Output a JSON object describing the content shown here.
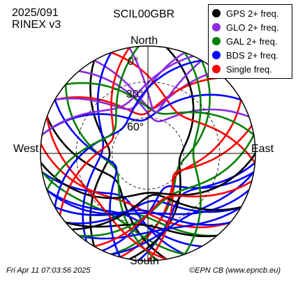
{
  "header": {
    "date_code": "2025/091",
    "format": "RINEX v3",
    "station": "SCIL00GBR"
  },
  "footer": {
    "timestamp": "Fri Apr 11 07:03:56 2025",
    "credit": "©EPN CB (www.epncb.eu)"
  },
  "chart_data": {
    "type": "skyplot",
    "directions": {
      "north": "North",
      "south": "South",
      "east": "East",
      "west": "West"
    },
    "elevation_rings": [
      {
        "value": 0,
        "label": "0°"
      },
      {
        "value": 30,
        "label": "30°"
      },
      {
        "value": 60,
        "label": "60°"
      }
    ],
    "legend": [
      {
        "name": "GPS 2+ freq.",
        "color": "#000000"
      },
      {
        "name": "GLO 2+ freq.",
        "color": "#8a2be2"
      },
      {
        "name": "GAL 2+ freq.",
        "color": "#008000"
      },
      {
        "name": "BDS 2+ freq.",
        "color": "#0000ff"
      },
      {
        "name": "Single freq.",
        "color": "#ff0000"
      }
    ],
    "tracks_note_free": true,
    "tracks": [
      {
        "system": "GAL 2+ freq.",
        "rise_az": 200,
        "set_az": 30,
        "max_el": 62
      },
      {
        "system": "GPS 2+ freq.",
        "rise_az": 210,
        "set_az": 330,
        "max_el": 58
      },
      {
        "system": "BDS 2+ freq.",
        "rise_az": 185,
        "set_az": 95,
        "max_el": 45
      },
      {
        "system": "GLO 2+ freq.",
        "rise_az": 330,
        "set_az": 40,
        "max_el": 52
      },
      {
        "system": "Single freq.",
        "rise_az": 195,
        "set_az": 60,
        "max_el": 60
      },
      {
        "system": "BDS 2+ freq.",
        "rise_az": 230,
        "set_az": 120,
        "max_el": 50
      },
      {
        "system": "GAL 2+ freq.",
        "rise_az": 240,
        "set_az": 140,
        "max_el": 38
      },
      {
        "system": "GPS 2+ freq.",
        "rise_az": 170,
        "set_az": 290,
        "max_el": 55
      },
      {
        "system": "BDS 2+ freq.",
        "rise_az": 160,
        "set_az": 260,
        "max_el": 48
      },
      {
        "system": "Single freq.",
        "rise_az": 300,
        "set_az": 45,
        "max_el": 57
      },
      {
        "system": "BDS 2+ freq.",
        "rise_az": 205,
        "set_az": 100,
        "max_el": 58
      },
      {
        "system": "GAL 2+ freq.",
        "rise_az": 260,
        "set_az": 160,
        "max_el": 30
      },
      {
        "system": "GLO 2+ freq.",
        "rise_az": 320,
        "set_az": 70,
        "max_el": 62
      },
      {
        "system": "GPS 2+ freq.",
        "rise_az": 190,
        "set_az": 10,
        "max_el": 63
      },
      {
        "system": "BDS 2+ freq.",
        "rise_az": 150,
        "set_az": 250,
        "max_el": 35
      },
      {
        "system": "Single freq.",
        "rise_az": 275,
        "set_az": 130,
        "max_el": 45
      },
      {
        "system": "BDS 2+ freq.",
        "rise_az": 215,
        "set_az": 340,
        "max_el": 52
      },
      {
        "system": "GAL 2+ freq.",
        "rise_az": 175,
        "set_az": 310,
        "max_el": 60
      },
      {
        "system": "GLO 2+ freq.",
        "rise_az": 300,
        "set_az": 20,
        "max_el": 50
      },
      {
        "system": "Single freq.",
        "rise_az": 180,
        "set_az": 75,
        "max_el": 62
      },
      {
        "system": "BDS 2+ freq.",
        "rise_az": 250,
        "set_az": 110,
        "max_el": 40
      },
      {
        "system": "GPS 2+ freq.",
        "rise_az": 140,
        "set_az": 230,
        "max_el": 30
      },
      {
        "system": "BDS 2+ freq.",
        "rise_az": 120,
        "set_az": 220,
        "max_el": 25
      },
      {
        "system": "GAL 2+ freq.",
        "rise_az": 310,
        "set_az": 80,
        "max_el": 55
      },
      {
        "system": "Single freq.",
        "rise_az": 340,
        "set_az": 95,
        "max_el": 48
      },
      {
        "system": "BDS 2+ freq.",
        "rise_az": 280,
        "set_az": 60,
        "max_el": 62
      },
      {
        "system": "GLO 2+ freq.",
        "rise_az": 350,
        "set_az": 30,
        "max_el": 55
      },
      {
        "system": "GAL 2+ freq.",
        "rise_az": 220,
        "set_az": 80,
        "max_el": 50
      },
      {
        "system": "BDS 2+ freq.",
        "rise_az": 195,
        "set_az": 300,
        "max_el": 61
      },
      {
        "system": "Single freq.",
        "rise_az": 235,
        "set_az": 350,
        "max_el": 58
      },
      {
        "system": "GPS 2+ freq.",
        "rise_az": 265,
        "set_az": 90,
        "max_el": 57
      },
      {
        "system": "BDS 2+ freq.",
        "rise_az": 100,
        "set_az": 200,
        "max_el": 28
      },
      {
        "system": "GAL 2+ freq.",
        "rise_az": 160,
        "set_az": 20,
        "max_el": 52
      },
      {
        "system": "Single freq.",
        "rise_az": 290,
        "set_az": 170,
        "max_el": 32
      },
      {
        "system": "GLO 2+ freq.",
        "rise_az": 280,
        "set_az": 25,
        "max_el": 45
      },
      {
        "system": "BDS 2+ freq.",
        "rise_az": 240,
        "set_az": 30,
        "max_el": 60
      },
      {
        "system": "GPS 2+ freq.",
        "rise_az": 225,
        "set_az": 120,
        "max_el": 55
      },
      {
        "system": "BDS 2+ freq.",
        "rise_az": 130,
        "set_az": 240,
        "max_el": 42
      },
      {
        "system": "Single freq.",
        "rise_az": 210,
        "set_az": 105,
        "max_el": 50
      },
      {
        "system": "GAL 2+ freq.",
        "rise_az": 250,
        "set_az": 355,
        "max_el": 56
      }
    ]
  }
}
